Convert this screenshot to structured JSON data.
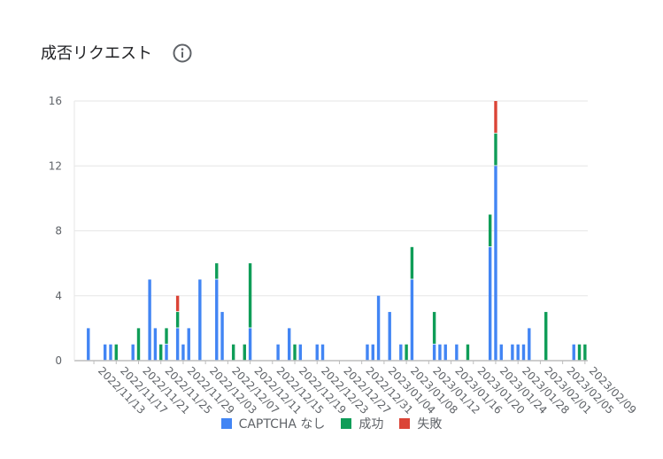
{
  "header": {
    "title": "成否リクエスト",
    "info_icon": "info-icon"
  },
  "chart_data": {
    "type": "bar",
    "stacked": true,
    "title": "成否リクエスト",
    "xlabel": "",
    "ylabel": "",
    "ylim": [
      0,
      16
    ],
    "yticks": [
      0,
      4,
      8,
      12,
      16
    ],
    "grid": true,
    "legend_position": "bottom",
    "categories": [
      "2022/11/10",
      "2022/11/11",
      "2022/11/12",
      "2022/11/13",
      "2022/11/14",
      "2022/11/15",
      "2022/11/16",
      "2022/11/17",
      "2022/11/18",
      "2022/11/19",
      "2022/11/20",
      "2022/11/21",
      "2022/11/22",
      "2022/11/23",
      "2022/11/24",
      "2022/11/25",
      "2022/11/26",
      "2022/11/27",
      "2022/11/28",
      "2022/11/29",
      "2022/11/30",
      "2022/12/01",
      "2022/12/02",
      "2022/12/03",
      "2022/12/04",
      "2022/12/05",
      "2022/12/06",
      "2022/12/07",
      "2022/12/08",
      "2022/12/09",
      "2022/12/10",
      "2022/12/11",
      "2022/12/12",
      "2022/12/13",
      "2022/12/14",
      "2022/12/15",
      "2022/12/16",
      "2022/12/17",
      "2022/12/18",
      "2022/12/19",
      "2022/12/20",
      "2022/12/21",
      "2022/12/22",
      "2022/12/23",
      "2022/12/24",
      "2022/12/25",
      "2022/12/26",
      "2022/12/27",
      "2022/12/28",
      "2022/12/29",
      "2022/12/30",
      "2022/12/31",
      "2023/01/01",
      "2023/01/02",
      "2023/01/03",
      "2023/01/04",
      "2023/01/05",
      "2023/01/06",
      "2023/01/07",
      "2023/01/08",
      "2023/01/09",
      "2023/01/10",
      "2023/01/11",
      "2023/01/12",
      "2023/01/13",
      "2023/01/14",
      "2023/01/15",
      "2023/01/16",
      "2023/01/17",
      "2023/01/18",
      "2023/01/19",
      "2023/01/20",
      "2023/01/21",
      "2023/01/22",
      "2023/01/23",
      "2023/01/24",
      "2023/01/25",
      "2023/01/26",
      "2023/01/27",
      "2023/01/28",
      "2023/01/29",
      "2023/01/30",
      "2023/01/31",
      "2023/02/01",
      "2023/02/02",
      "2023/02/03",
      "2023/02/04",
      "2023/02/05",
      "2023/02/06",
      "2023/02/07",
      "2023/02/08",
      "2023/02/09"
    ],
    "xtick_labels": [
      "2022/11/13",
      "2022/11/17",
      "2022/11/21",
      "2022/11/25",
      "2022/11/29",
      "2022/12/03",
      "2022/12/07",
      "2022/12/11",
      "2022/12/15",
      "2022/12/19",
      "2022/12/23",
      "2022/12/27",
      "2022/12/31",
      "2023/01/04",
      "2023/01/08",
      "2023/01/12",
      "2023/01/16",
      "2023/01/20",
      "2023/01/24",
      "2023/01/28",
      "2023/02/01",
      "2023/02/05",
      "2023/02/09"
    ],
    "series": [
      {
        "name": "CAPTCHA なし",
        "color": "#4285f4",
        "values": [
          0,
          0,
          2,
          0,
          0,
          1,
          1,
          0,
          0,
          0,
          1,
          0,
          0,
          5,
          2,
          0,
          1,
          0,
          2,
          1,
          2,
          0,
          5,
          0,
          0,
          5,
          3,
          0,
          0,
          0,
          0,
          2,
          0,
          0,
          0,
          0,
          1,
          0,
          2,
          0,
          1,
          0,
          0,
          1,
          1,
          0,
          0,
          0,
          0,
          0,
          0,
          0,
          1,
          1,
          4,
          0,
          3,
          0,
          1,
          0,
          5,
          0,
          0,
          0,
          1,
          1,
          1,
          0,
          1,
          0,
          0,
          0,
          0,
          0,
          7,
          12,
          1,
          0,
          1,
          1,
          1,
          2,
          0,
          0,
          0,
          0,
          0,
          0,
          0,
          1,
          0,
          0
        ]
      },
      {
        "name": "成功",
        "color": "#0f9d58",
        "values": [
          0,
          0,
          0,
          0,
          0,
          0,
          0,
          1,
          0,
          0,
          0,
          2,
          0,
          0,
          0,
          1,
          1,
          0,
          1,
          0,
          0,
          0,
          0,
          0,
          0,
          1,
          0,
          0,
          1,
          0,
          1,
          4,
          0,
          0,
          0,
          0,
          0,
          0,
          0,
          1,
          0,
          0,
          0,
          0,
          0,
          0,
          0,
          0,
          0,
          0,
          0,
          0,
          0,
          0,
          0,
          0,
          0,
          0,
          0,
          1,
          2,
          0,
          0,
          0,
          2,
          0,
          0,
          0,
          0,
          0,
          1,
          0,
          0,
          0,
          2,
          2,
          0,
          0,
          0,
          0,
          0,
          0,
          0,
          0,
          3,
          0,
          0,
          0,
          0,
          0,
          1,
          1
        ]
      },
      {
        "name": "失敗",
        "color": "#db4437",
        "values": [
          0,
          0,
          0,
          0,
          0,
          0,
          0,
          0,
          0,
          0,
          0,
          0,
          0,
          0,
          0,
          0,
          0,
          0,
          1,
          0,
          0,
          0,
          0,
          0,
          0,
          0,
          0,
          0,
          0,
          0,
          0,
          0,
          0,
          0,
          0,
          0,
          0,
          0,
          0,
          0,
          0,
          0,
          0,
          0,
          0,
          0,
          0,
          0,
          0,
          0,
          0,
          0,
          0,
          0,
          0,
          0,
          0,
          0,
          0,
          0,
          0,
          0,
          0,
          0,
          0,
          0,
          0,
          0,
          0,
          0,
          0,
          0,
          0,
          0,
          0,
          2,
          0,
          0,
          0,
          0,
          0,
          0,
          0,
          0,
          0,
          0,
          0,
          0,
          0,
          0,
          0,
          0
        ]
      }
    ]
  }
}
